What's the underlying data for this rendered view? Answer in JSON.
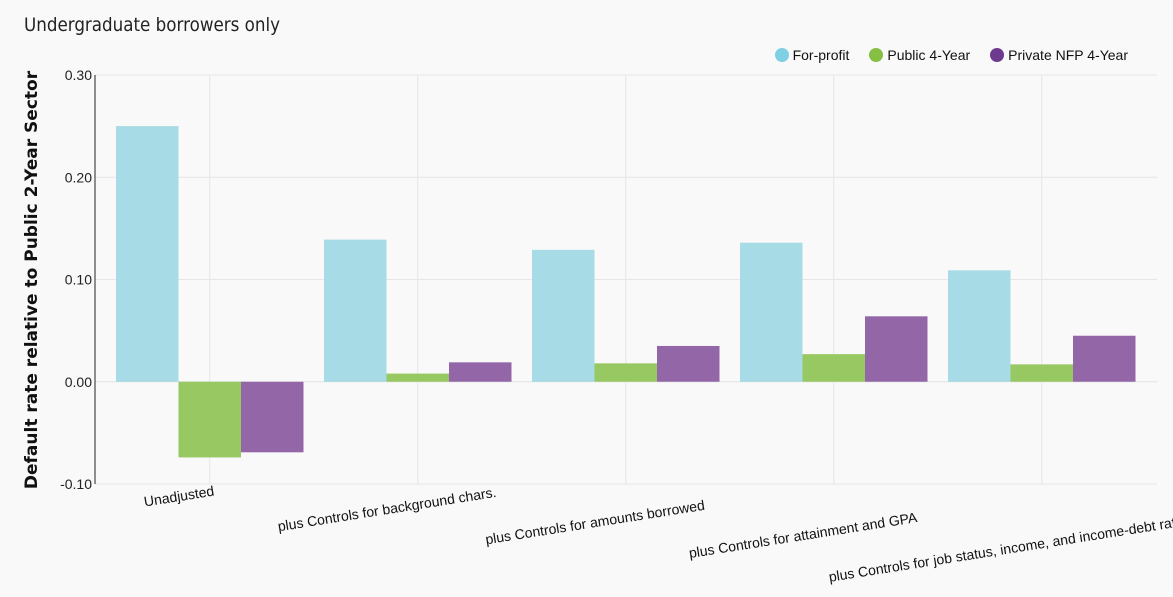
{
  "chart_data": {
    "type": "bar",
    "title": "Undergraduate borrowers only",
    "xlabel": "",
    "ylabel": "Default rate relative to Public 2-Year Sector",
    "ylim": [
      -0.1,
      0.3
    ],
    "yticks": [
      0.3,
      0.2,
      0.1,
      0.0,
      -0.1
    ],
    "ytick_labels": [
      "0.30",
      "0.20",
      "0.10",
      "0.00",
      "-0.10"
    ],
    "categories": [
      "Unadjusted",
      "plus Controls for background chars.",
      "plus Controls for amounts borrowed",
      "plus Controls for attainment and GPA",
      "plus Controls for job status, income, and income-debt ratios"
    ],
    "series": [
      {
        "name": "For-profit",
        "color": "#a7dbe6",
        "legend_color": "#7fd0e3",
        "values": [
          0.25,
          0.139,
          0.129,
          0.136,
          0.109
        ]
      },
      {
        "name": "Public 4-Year",
        "color": "#98c862",
        "legend_color": "#86c043",
        "values": [
          -0.074,
          0.008,
          0.018,
          0.027,
          0.017
        ]
      },
      {
        "name": "Private NFP 4-Year",
        "color": "#9367a7",
        "legend_color": "#6c3a8e",
        "values": [
          -0.069,
          0.019,
          0.035,
          0.064,
          0.045
        ]
      }
    ],
    "grid": true,
    "legend_position": "top-right"
  }
}
